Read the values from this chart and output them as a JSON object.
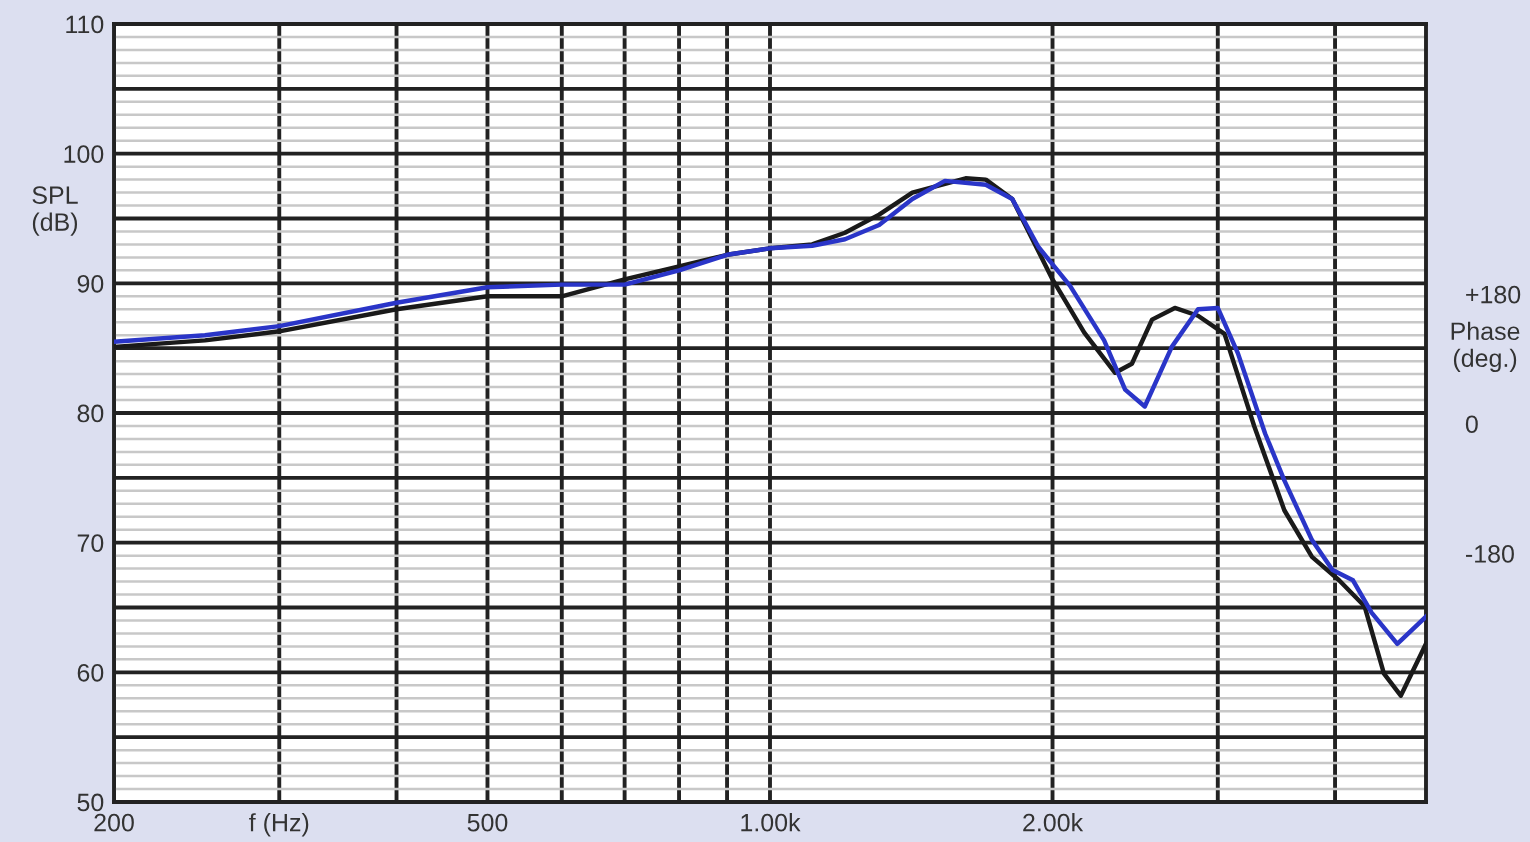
{
  "chart_data": {
    "type": "line",
    "ylabel": "SPL\n(dB)",
    "y2label": "Phase\n(deg.)",
    "log": "x",
    "xlim": [
      200,
      5000
    ],
    "xticks": [
      200,
      {
        "value": 300,
        "label": "f (Hz)"
      },
      {
        "value": 400,
        "label": null
      },
      500,
      {
        "value": 600,
        "label": null
      },
      {
        "value": 700,
        "label": null
      },
      {
        "value": 800,
        "label": null
      },
      {
        "value": 900,
        "label": null
      },
      {
        "value": 1000,
        "label": "1.00k"
      },
      {
        "value": 2000,
        "label": "2.00k"
      },
      {
        "value": 3000,
        "label": null
      },
      {
        "value": 4000,
        "label": null
      }
    ],
    "ylim": [
      50,
      110
    ],
    "yticks": [
      50,
      {
        "value": 55,
        "label": null
      },
      60,
      {
        "value": 65,
        "label": null
      },
      70,
      {
        "value": 75,
        "label": null
      },
      80,
      {
        "value": 85,
        "label": null
      },
      90,
      {
        "value": 95,
        "label": null
      },
      100,
      {
        "value": 105,
        "label": null
      },
      110
    ],
    "y2lim": [
      -525,
      555
    ],
    "y2ticks": [
      {
        "value": 180,
        "label": "+180"
      },
      0,
      -180
    ],
    "grid": true,
    "line_style": "solid",
    "marker": "none",
    "series": [
      {
        "color": "#1a1a1a",
        "x": [
          200,
          250,
          300,
          400,
          500,
          600,
          700,
          800,
          900,
          1000,
          1109,
          1202,
          1307,
          1418,
          1616,
          1698,
          1812,
          2000,
          2162,
          2332,
          2430,
          2553,
          2700,
          2858,
          3050,
          3280,
          3532,
          3780,
          4040,
          4300,
          4510,
          4700,
          5000
        ],
        "values": [
          85.1,
          85.6,
          86.3,
          88.0,
          89.0,
          89.0,
          90.3,
          91.3,
          92.2,
          92.7,
          93.0,
          93.9,
          95.3,
          97.0,
          98.1,
          98.0,
          96.5,
          90.3,
          86.2,
          83.1,
          83.8,
          87.2,
          88.1,
          87.5,
          86.1,
          79.0,
          72.5,
          68.9,
          67.1,
          65.1,
          59.9,
          58.2,
          62.2
        ]
      },
      {
        "color": "#2a35c8",
        "x": [
          200,
          250,
          300,
          400,
          500,
          600,
          700,
          800,
          900,
          1000,
          1109,
          1202,
          1307,
          1418,
          1536,
          1698,
          1812,
          1932,
          2088,
          2270,
          2390,
          2508,
          2680,
          2858,
          3000,
          3152,
          3370,
          3532,
          3780,
          3975,
          4180,
          4375,
          4660,
          5000
        ],
        "values": [
          85.5,
          86.0,
          86.7,
          88.5,
          89.7,
          89.9,
          89.9,
          91.0,
          92.2,
          92.7,
          92.9,
          93.4,
          94.5,
          96.5,
          97.9,
          97.6,
          96.5,
          92.8,
          89.8,
          85.6,
          81.8,
          80.5,
          85.1,
          88.0,
          88.1,
          84.6,
          78.4,
          74.8,
          70.2,
          67.9,
          67.1,
          64.6,
          62.2,
          64.3
        ]
      }
    ]
  }
}
